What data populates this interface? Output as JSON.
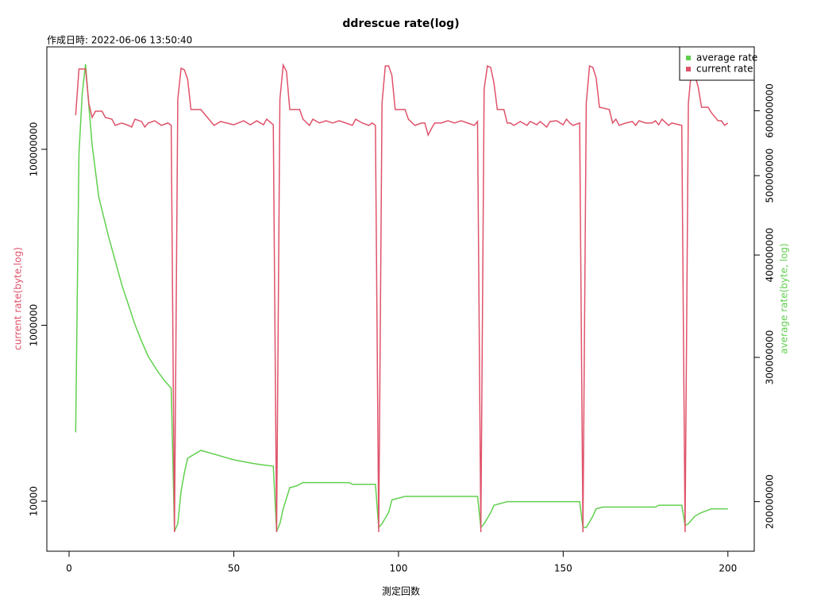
{
  "chart_data": {
    "type": "line",
    "title": "ddrescue rate(log)",
    "subtitle": "作成日時: 2022-06-06 13:50:40",
    "x_label": "測定回数",
    "y_label": "current rate(byte,log)",
    "y2_label": "average rate(byte, log)",
    "xlim": [
      -6.75,
      208
    ],
    "xticks": [
      0,
      50,
      100,
      150,
      200
    ],
    "ylim": [
      2700,
      1460000000
    ],
    "yticks": [
      10000,
      1000000,
      100000000
    ],
    "y_scale": "log",
    "y2lim": [
      174000000,
      718000000
    ],
    "y2ticks": [
      200000000,
      300000000,
      400000000,
      500000000,
      600000000
    ],
    "y2_scale": "log",
    "legend": "top-right",
    "series": [
      {
        "name": "average rate",
        "color": "#61D04F",
        "axis": "y2",
        "x": [
          2,
          3,
          4,
          5,
          6,
          7,
          9,
          12,
          16,
          20,
          22,
          24,
          27,
          29,
          31,
          32,
          33,
          34,
          35,
          36,
          40,
          45,
          50,
          55,
          58,
          62,
          63,
          64,
          65,
          67,
          69,
          71,
          85,
          86,
          93,
          94,
          95,
          97,
          98,
          100,
          102,
          121,
          124,
          125,
          126,
          128,
          129,
          131,
          133,
          155,
          156,
          157,
          159,
          160,
          162,
          178,
          179,
          186,
          187,
          188,
          190,
          192,
          195,
          200
        ],
        "values": [
          243000000,
          532000000,
          630000000,
          684000000,
          609000000,
          545000000,
          471000000,
          421000000,
          368000000,
          329000000,
          314000000,
          301000000,
          288000000,
          281000000,
          275000000,
          184000000,
          188000000,
          206000000,
          217000000,
          226000000,
          231000000,
          228000000,
          225000000,
          223000000,
          222000000,
          221000000,
          184000000,
          188000000,
          196000000,
          208000000,
          209000000,
          211000000,
          211000000,
          210000000,
          210000000,
          186000000,
          188000000,
          194000000,
          201000000,
          202000000,
          203000000,
          203000000,
          203000000,
          186000000,
          188000000,
          194000000,
          198000000,
          199000000,
          200000000,
          200000000,
          186000000,
          186000000,
          192000000,
          196000000,
          197000000,
          197000000,
          198000000,
          198000000,
          187000000,
          188000000,
          192000000,
          194000000,
          196000000,
          196000000
        ]
      },
      {
        "name": "current rate",
        "color": "#DF536B",
        "axis": "y",
        "x": [
          2,
          3,
          5,
          6,
          7,
          8,
          10,
          11,
          13,
          14,
          16,
          18,
          19,
          20,
          22,
          23,
          24,
          26,
          27,
          28,
          30,
          31,
          32,
          33,
          34,
          35,
          36,
          37,
          40,
          42,
          44,
          46,
          50,
          53,
          55,
          57,
          59,
          60,
          62,
          63,
          64,
          65,
          66,
          67,
          70,
          71,
          73,
          74,
          76,
          78,
          80,
          82,
          84,
          86,
          87,
          89,
          91,
          92,
          93,
          94,
          95,
          96,
          97,
          98,
          99,
          102,
          103,
          105,
          107,
          108,
          109,
          110,
          111,
          113,
          115,
          117,
          119,
          121,
          123,
          124,
          125,
          126,
          127,
          128,
          129,
          130,
          132,
          133,
          134,
          135,
          137,
          139,
          140,
          142,
          143,
          145,
          146,
          148,
          150,
          151,
          152,
          153,
          155,
          156,
          157,
          158,
          159,
          160,
          161,
          164,
          165,
          166,
          167,
          169,
          171,
          172,
          173,
          175,
          177,
          178,
          179,
          180,
          182,
          183,
          186,
          187,
          188,
          189,
          190,
          191,
          192,
          194,
          195,
          197,
          198,
          199,
          200
        ],
        "values": [
          244000000,
          817000000,
          817000000,
          334000000,
          230000000,
          271000000,
          271000000,
          230000000,
          220000000,
          187000000,
          199000000,
          187000000,
          179000000,
          220000000,
          207000000,
          179000000,
          199000000,
          211000000,
          199000000,
          187000000,
          199000000,
          187000000,
          4450,
          370000000,
          834000000,
          800000000,
          623000000,
          283000000,
          283000000,
          230000000,
          187000000,
          207000000,
          190000000,
          211000000,
          190000000,
          211000000,
          190000000,
          220000000,
          190000000,
          4450,
          370000000,
          906000000,
          767000000,
          283000000,
          283000000,
          220000000,
          187000000,
          220000000,
          199000000,
          211000000,
          199000000,
          211000000,
          199000000,
          187000000,
          220000000,
          199000000,
          187000000,
          199000000,
          187000000,
          4450,
          334000000,
          887000000,
          887000000,
          692000000,
          283000000,
          283000000,
          220000000,
          187000000,
          199000000,
          199000000,
          145000000,
          172000000,
          199000000,
          199000000,
          211000000,
          199000000,
          211000000,
          199000000,
          187000000,
          207000000,
          4450,
          486000000,
          887000000,
          851000000,
          561000000,
          283000000,
          283000000,
          199000000,
          199000000,
          187000000,
          207000000,
          187000000,
          207000000,
          190000000,
          207000000,
          179000000,
          207000000,
          211000000,
          190000000,
          220000000,
          199000000,
          187000000,
          199000000,
          4450,
          334000000,
          887000000,
          851000000,
          650000000,
          301000000,
          283000000,
          199000000,
          220000000,
          187000000,
          199000000,
          207000000,
          187000000,
          211000000,
          199000000,
          199000000,
          211000000,
          190000000,
          220000000,
          187000000,
          199000000,
          187000000,
          4450,
          334000000,
          851000000,
          692000000,
          506000000,
          301000000,
          301000000,
          260000000,
          211000000,
          211000000,
          187000000,
          199000000
        ]
      }
    ]
  }
}
